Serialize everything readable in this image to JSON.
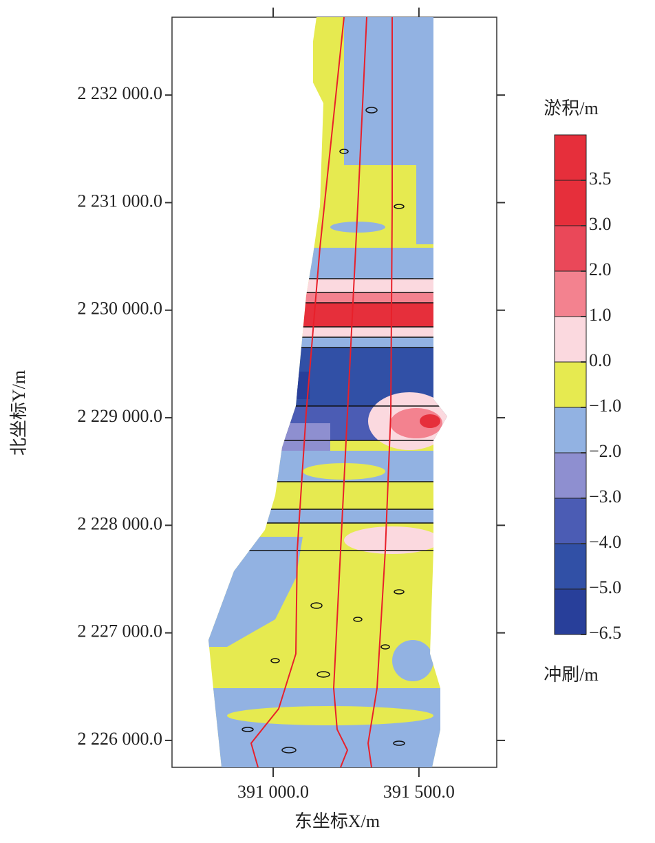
{
  "chart_data": {
    "type": "contour",
    "x_label": "东坐标X/m",
    "y_label": "北坐标Y/m",
    "xlim": [
      390653,
      391767
    ],
    "ylim": [
      2225750,
      2232724
    ],
    "xticks": [
      {
        "value": 391000,
        "label": "391 000.0"
      },
      {
        "value": 391500,
        "label": "391 500.0"
      }
    ],
    "yticks": [
      {
        "value": 2226000,
        "label": "2 226 000.0"
      },
      {
        "value": 2227000,
        "label": "2 227 000.0"
      },
      {
        "value": 2228000,
        "label": "2 228 000.0"
      },
      {
        "value": 2229000,
        "label": "2 229 000.0"
      },
      {
        "value": 2230000,
        "label": "2 230 000.0"
      },
      {
        "value": 2231000,
        "label": "2 231 000.0"
      },
      {
        "value": 2232000,
        "label": "2 232 000.0"
      }
    ],
    "colorbar": {
      "title": "淤积/m",
      "bottom_label": "冲刷/m",
      "levels": [
        -6.5,
        -5.0,
        -4.0,
        -3.0,
        -2.0,
        -1.0,
        0.0,
        1.0,
        2.0,
        3.0,
        3.5
      ],
      "level_labels": [
        "−6.5",
        "−5.0",
        "−4.0",
        "−3.0",
        "−2.0",
        "−1.0",
        "0.0",
        "1.0",
        "2.0",
        "3.0",
        "3.5"
      ],
      "colors": [
        "#283f9a",
        "#3150a6",
        "#4b5cb4",
        "#8e8fd0",
        "#92b2e2",
        "#e6ea50",
        "#fbd9df",
        "#f3828f",
        "#ea4859",
        "#e62f3b",
        "#e62f3b"
      ]
    }
  }
}
